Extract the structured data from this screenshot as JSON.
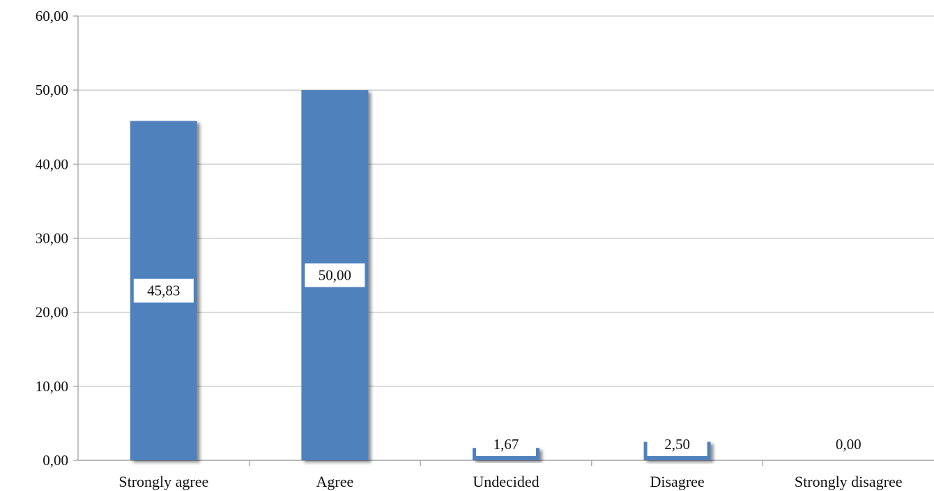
{
  "chart_data": {
    "type": "bar",
    "categories": [
      "Strongly agree",
      "Agree",
      "Undecided",
      "Disagree",
      "Strongly disagree"
    ],
    "values": [
      45.83,
      50.0,
      1.67,
      2.5,
      0.0
    ],
    "value_labels": [
      "45,83",
      "50,00",
      "1,67",
      "2,50",
      "0,00"
    ],
    "y_ticks": [
      0,
      10,
      20,
      30,
      40,
      50,
      60
    ],
    "y_tick_labels": [
      "0,00",
      "10,00",
      "20,00",
      "30,00",
      "40,00",
      "50,00",
      "60,00"
    ],
    "ylim": [
      0,
      60
    ],
    "grid": true,
    "legend": "none",
    "bar_color": "#4f81bd",
    "gridline_color": "#c8c8c8",
    "axis_color": "#a0a0a0"
  }
}
